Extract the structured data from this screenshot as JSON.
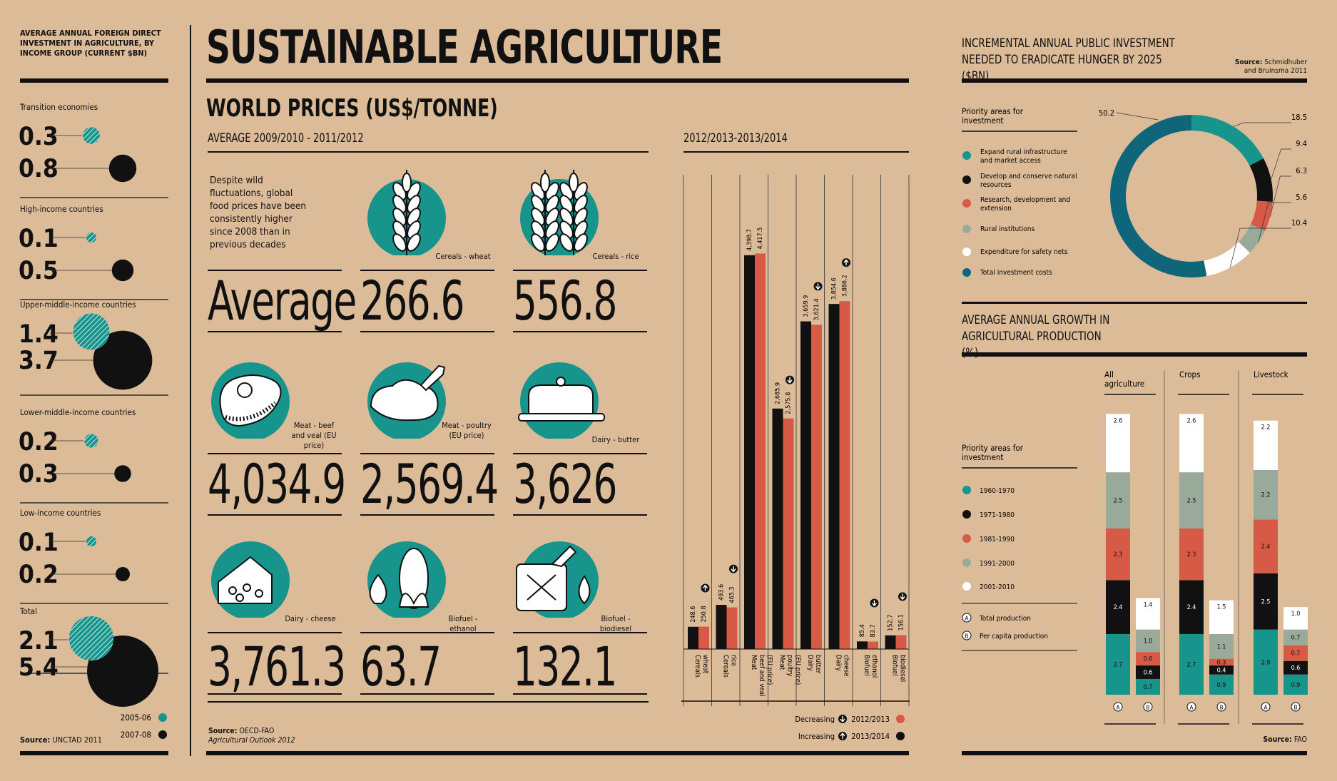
{
  "colors": {
    "background": "#dcbb99",
    "teal": "#17948c",
    "black": "#111111",
    "red": "#d65a46",
    "grey": "#9aaa9a",
    "white": "#ffffff",
    "darkteal": "#0f6579"
  },
  "main_title": "SUSTAINABLE AGRICULTURE",
  "fdi": {
    "title": "AVERAGE ANNUAL FOREIGN DIRECT INVESTMENT IN AGRICULTURE, BY INCOME GROUP (CURRENT $BN)",
    "groups": [
      {
        "label": "Transition economies",
        "v1": "0.3",
        "v2": "0.8"
      },
      {
        "label": "High-income countries",
        "v1": "0.1",
        "v2": "0.5"
      },
      {
        "label": "Upper-middle-income countries",
        "v1": "1.4",
        "v2": "3.7"
      },
      {
        "label": "Lower-middle-income countries",
        "v1": "0.2",
        "v2": "0.3"
      },
      {
        "label": "Low-income countries",
        "v1": "0.1",
        "v2": "0.2"
      },
      {
        "label": "Total",
        "v1": "2.1",
        "v2": "5.4"
      }
    ],
    "legend": [
      "2005-06",
      "2007-08"
    ],
    "source_label": "Source:",
    "source": "UNCTAD 2011"
  },
  "world_prices": {
    "title": "WORLD PRICES (US$/TONNE)",
    "subtitle_left": "AVERAGE 2009/2010 - 2011/2012",
    "subtitle_right": "2012/2013-2013/2014",
    "intro": "Despite wild fluctuations, global food prices have been consistently higher since 2008 than in previous decades",
    "average_word": "Average",
    "items": [
      {
        "name": "Cereals - wheat",
        "icon": "wheat-icon",
        "value": "266.6"
      },
      {
        "name": "Cereals - rice",
        "icon": "rice-icon",
        "value": "556.8"
      },
      {
        "name": "Meat - beef and veal (EU price)",
        "icon": "beef-icon",
        "value": "4,034.9"
      },
      {
        "name": "Meat - poultry (EU price)",
        "icon": "poultry-icon",
        "value": "2,569.4"
      },
      {
        "name": "Dairy - butter",
        "icon": "butter-icon",
        "value": "3,626"
      },
      {
        "name": "Dairy - cheese",
        "icon": "cheese-icon",
        "value": "3,761.3"
      },
      {
        "name": "Biofuel - ethanol",
        "icon": "ethanol-icon",
        "value": "63.7"
      },
      {
        "name": "Biofuel - biodiesel",
        "icon": "biodiesel-icon",
        "value": "132.1"
      }
    ],
    "source_label": "Source:",
    "source": "OECD-FAO",
    "source2": "Agricultural Outlook 2012"
  },
  "chart_data": [
    {
      "type": "bar",
      "title": "2012/2013-2013/2014",
      "categories": [
        "Cereals - wheat",
        "Cereals - rice",
        "Meat - beef and veal (EU price)",
        "Meat - poultry (EU price)",
        "Dairy - butter",
        "Dairy - cheese",
        "Biofuel - ethanol",
        "Biofuel - biodiesel"
      ],
      "series": [
        {
          "name": "2013/2014",
          "color": "#111111",
          "values": [
            248.6,
            493.6,
            4398.7,
            2685.9,
            3659.9,
            3854.6,
            85.4,
            152.7
          ],
          "labels": [
            "248.6",
            "493.6",
            "4,398.7",
            "2,685.9",
            "3,659.9",
            "3,854.6",
            "85.4",
            "152.7"
          ]
        },
        {
          "name": "2012/2013",
          "color": "#d65a46",
          "values": [
            250.8,
            465.3,
            4417.5,
            2575.8,
            3621.4,
            3886.2,
            83.7,
            156.1
          ],
          "labels": [
            "250.8",
            "465.3",
            "4,417.5",
            "2,575.8",
            "3,621.4",
            "3,886.2",
            "83.7",
            "156.1"
          ]
        }
      ],
      "trend": [
        "increasing",
        "decreasing",
        "none",
        "decreasing",
        "decreasing",
        "increasing",
        "decreasing",
        "decreasing"
      ],
      "ylim": [
        0,
        4700
      ],
      "legend": {
        "decreasing": "Decreasing",
        "increasing": "Increasing",
        "s1": "2012/2013",
        "s2": "2013/2014"
      }
    },
    {
      "type": "pie",
      "title": "INCREMENTAL ANNUAL PUBLIC INVESTMENT NEEDED TO ERADICATE HUNGER BY 2025 ($BN)",
      "legend_title": "Priority areas for investment",
      "categories": [
        "Expand rural infrastructure and market access",
        "Develop and conserve natural resources",
        "Research, development and extension",
        "Rural institutions",
        "Expenditure for safety nets",
        "Total investment costs"
      ],
      "values": [
        18.5,
        9.4,
        6.3,
        5.6,
        10.4,
        50.2
      ],
      "labels": [
        "18.5",
        "9.4",
        "6.3",
        "5.6",
        "10.4",
        "50.2"
      ],
      "colors": [
        "#17948c",
        "#111111",
        "#d65a46",
        "#9aaa9a",
        "#ffffff",
        "#0f6579"
      ],
      "source_label": "Source:",
      "source": "Schmidhuber and Bruinsma 2011"
    },
    {
      "type": "bar",
      "title": "AVERAGE ANNUAL GROWTH IN AGRICULTURAL PRODUCTION (%)",
      "legend_title": "Priority areas for investment",
      "periods": [
        "1960-1970",
        "1971-1980",
        "1981-1990",
        "1991-2000",
        "2001-2010"
      ],
      "period_colors": [
        "#17948c",
        "#111111",
        "#d65a46",
        "#9aaa9a",
        "#ffffff"
      ],
      "bar_keys": [
        "A",
        "B"
      ],
      "bar_key_labels": [
        "Total production",
        "Per capita production"
      ],
      "groups": [
        {
          "name": "All agriculture",
          "A": [
            2.7,
            2.4,
            2.3,
            2.5,
            2.6
          ],
          "B": [
            0.7,
            0.6,
            0.6,
            1.0,
            1.4
          ]
        },
        {
          "name": "Crops",
          "A": [
            2.7,
            2.4,
            2.3,
            2.5,
            2.6
          ],
          "B": [
            0.9,
            0.4,
            0.3,
            1.1,
            1.5
          ]
        },
        {
          "name": "Livestock",
          "A": [
            2.9,
            2.5,
            2.4,
            2.2,
            2.2
          ],
          "B": [
            0.9,
            0.6,
            0.7,
            0.7,
            1.0
          ]
        }
      ],
      "source_label": "Source:",
      "source": "FAO"
    }
  ]
}
